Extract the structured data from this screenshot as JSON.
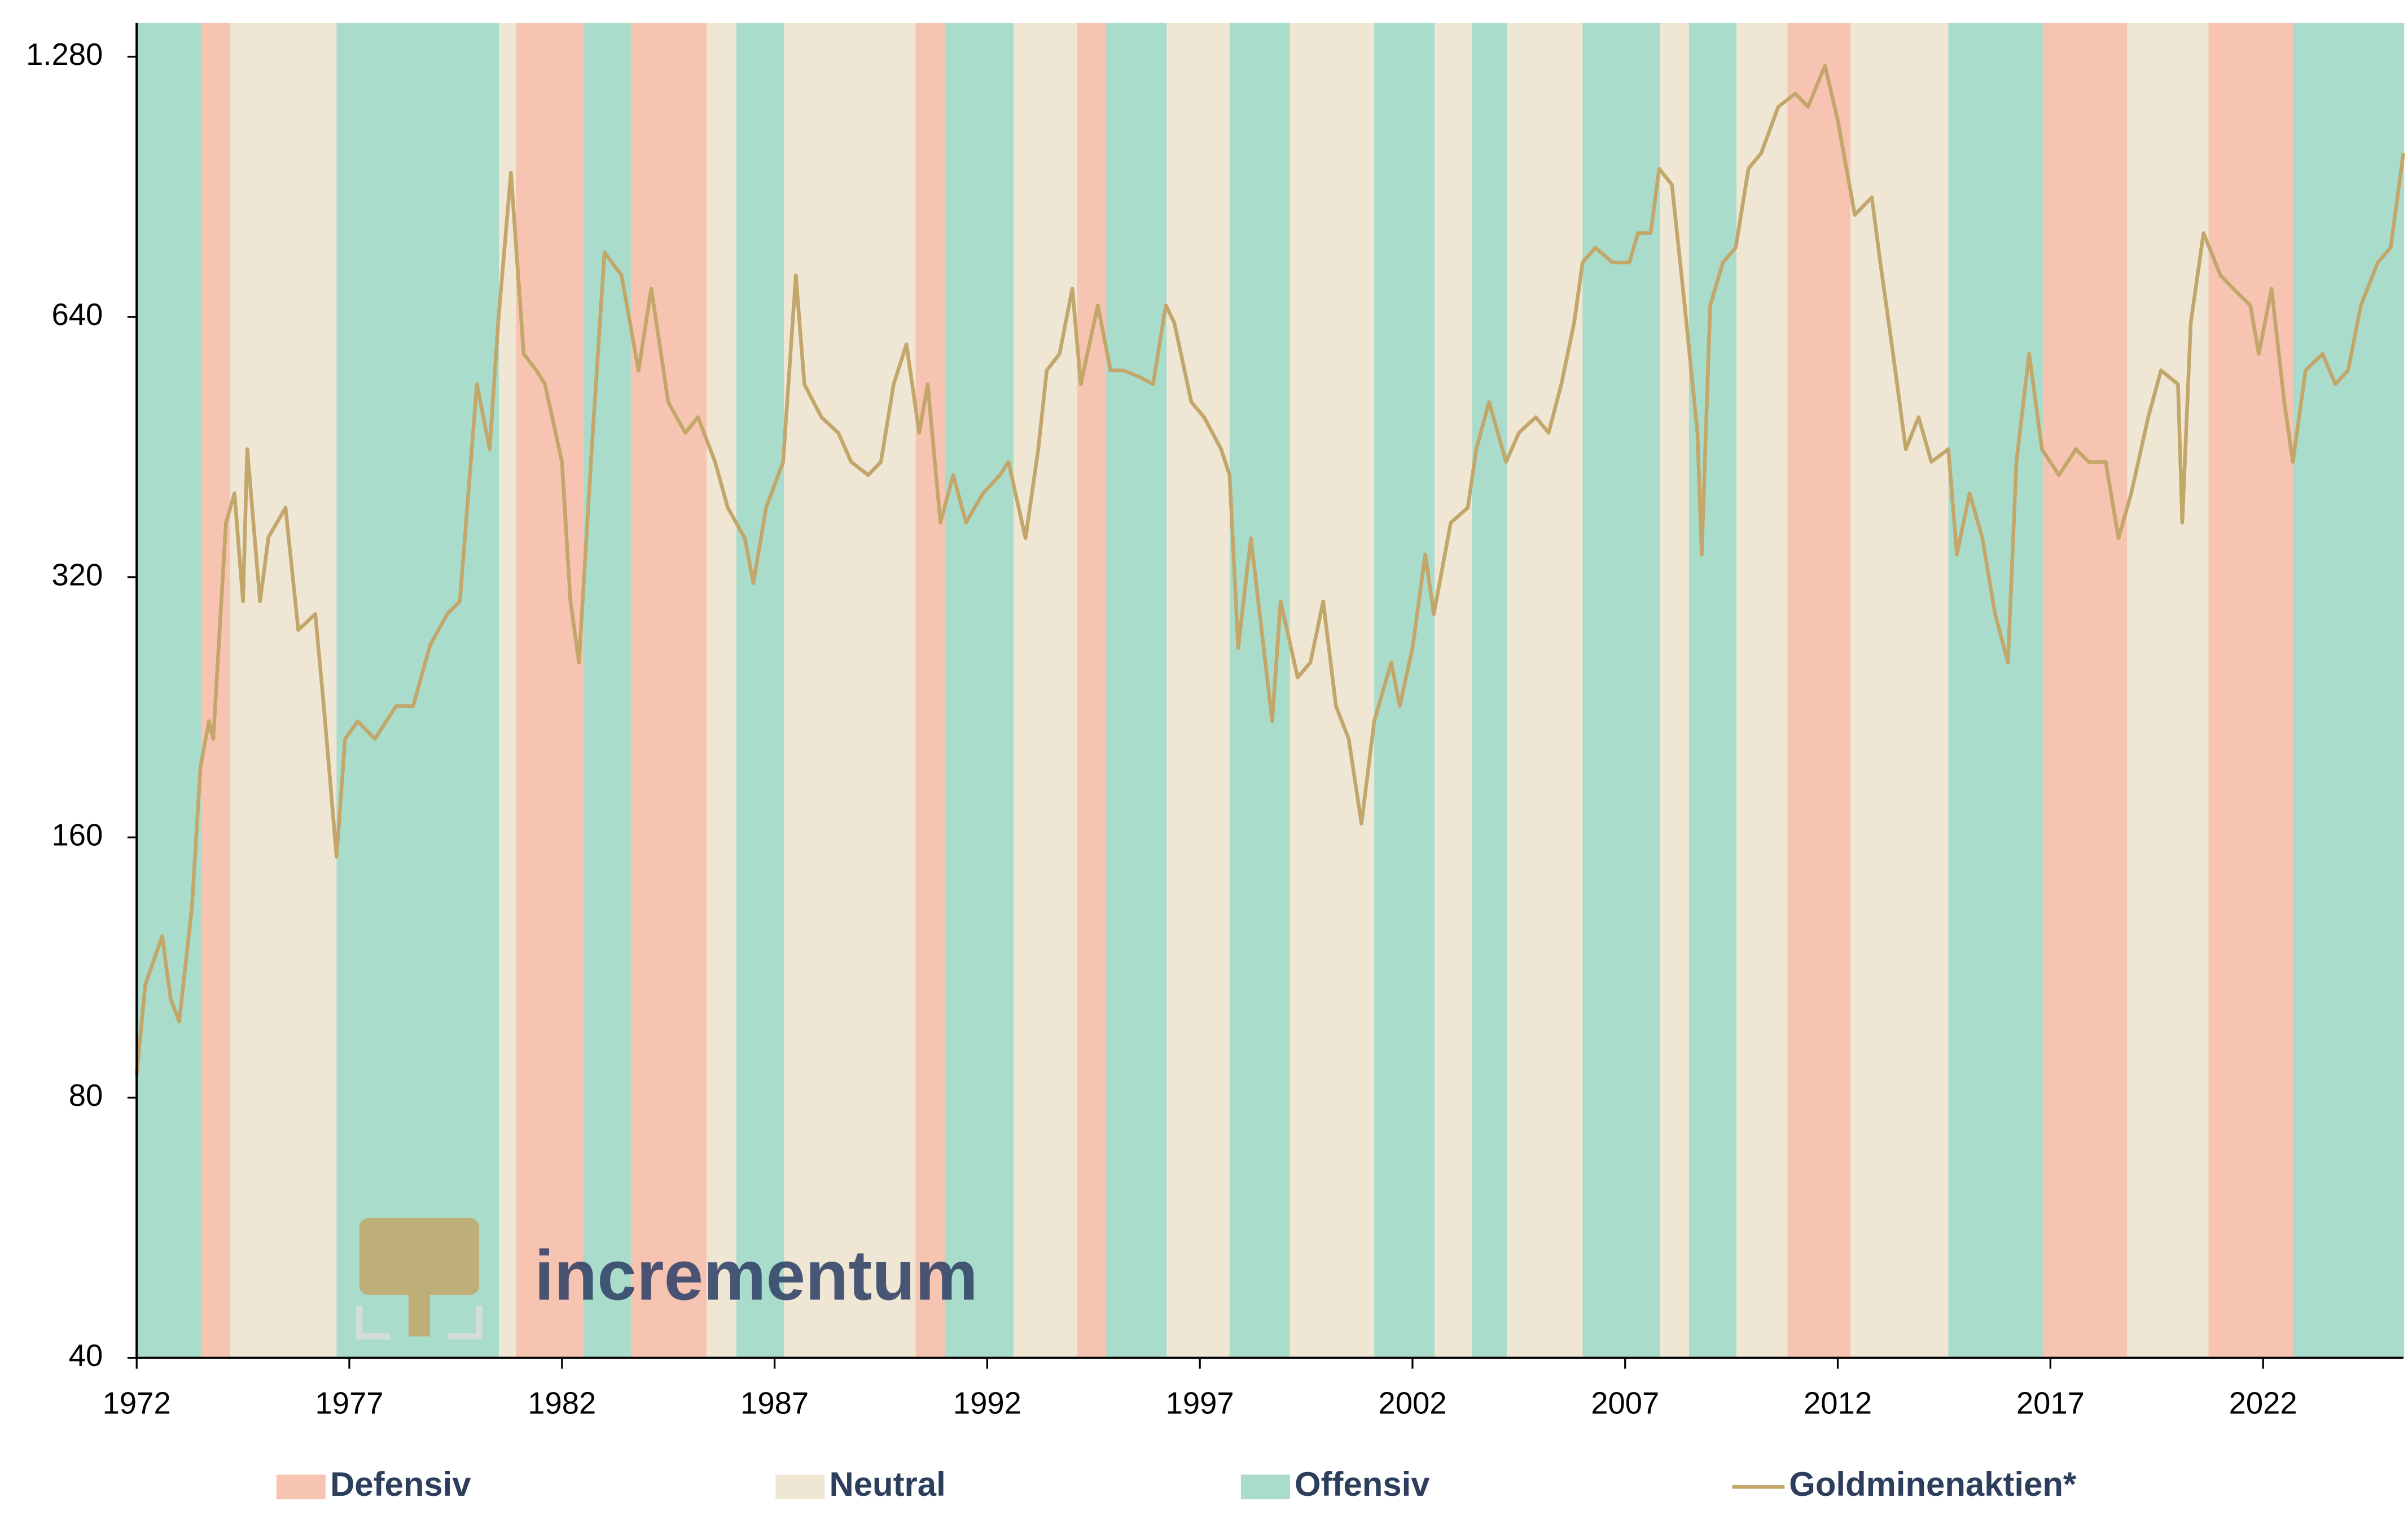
{
  "chart_data": {
    "type": "line",
    "log_scale": true,
    "xlim": [
      1972,
      2025.3
    ],
    "xticks": [
      1972,
      1977,
      1982,
      1987,
      1992,
      1997,
      2002,
      2007,
      2012,
      2017,
      2022
    ],
    "ylim": [
      40,
      1400
    ],
    "yticks": [
      40,
      80,
      160,
      320,
      640,
      {
        "value": 1280,
        "label": "1.280"
      }
    ],
    "watermark": "incrementum",
    "regimes": [
      {
        "name": "Defensiv",
        "color": "#f7c4b2",
        "intervals": [
          [
            1973.5,
            1974.2
          ],
          [
            1980.9,
            1982.5
          ],
          [
            1983.6,
            1985.4
          ],
          [
            1990.3,
            1991.0
          ],
          [
            1994.1,
            1994.8
          ],
          [
            2010.8,
            2012.3
          ],
          [
            2016.8,
            2018.8
          ],
          [
            2020.7,
            2022.7
          ]
        ]
      },
      {
        "name": "Neutral",
        "color": "#efe6d4",
        "intervals": [
          [
            1974.2,
            1976.7
          ],
          [
            1980.5,
            1980.9
          ],
          [
            1985.4,
            1986.1
          ],
          [
            1987.2,
            1990.3
          ],
          [
            1992.6,
            1994.1
          ],
          [
            1996.2,
            1997.7
          ],
          [
            1999.1,
            2001.1
          ],
          [
            2002.5,
            2003.4
          ],
          [
            2004.2,
            2006.0
          ],
          [
            2007.8,
            2008.5
          ],
          [
            2009.6,
            2010.8
          ],
          [
            2012.3,
            2014.6
          ],
          [
            2018.8,
            2020.7
          ]
        ]
      },
      {
        "name": "Offensiv",
        "color": "#aadccb",
        "intervals": [
          [
            1972.0,
            1973.5
          ],
          [
            1976.7,
            1980.5
          ],
          [
            1982.5,
            1983.6
          ],
          [
            1986.1,
            1987.2
          ],
          [
            1991.0,
            1992.6
          ],
          [
            1994.8,
            1996.2
          ],
          [
            1997.7,
            1999.1
          ],
          [
            2001.1,
            2002.5
          ],
          [
            2003.4,
            2004.2
          ],
          [
            2006.0,
            2007.8
          ],
          [
            2008.5,
            2009.6
          ],
          [
            2014.6,
            2016.8
          ],
          [
            2022.7,
            2025.3
          ]
        ]
      }
    ],
    "x": [
      1972.0,
      1972.2,
      1972.6,
      1972.8,
      1973.0,
      1973.3,
      1973.5,
      1973.7,
      1973.8,
      1974.1,
      1974.3,
      1974.5,
      1974.6,
      1974.9,
      1975.1,
      1975.5,
      1975.8,
      1976.2,
      1976.4,
      1976.7,
      1976.9,
      1977.2,
      1977.6,
      1978.1,
      1978.5,
      1978.9,
      1979.3,
      1979.6,
      1980.0,
      1980.3,
      1980.5,
      1980.8,
      1981.1,
      1981.4,
      1981.6,
      1982.0,
      1982.2,
      1982.4,
      1982.7,
      1983.0,
      1983.4,
      1983.8,
      1984.1,
      1984.5,
      1984.9,
      1985.2,
      1985.6,
      1985.9,
      1986.3,
      1986.5,
      1986.8,
      1987.2,
      1987.5,
      1987.7,
      1988.1,
      1988.5,
      1988.8,
      1989.2,
      1989.5,
      1989.8,
      1990.1,
      1990.4,
      1990.6,
      1990.9,
      1991.2,
      1991.5,
      1991.9,
      1992.3,
      1992.5,
      1992.9,
      1993.2,
      1993.4,
      1993.7,
      1994.0,
      1994.2,
      1994.6,
      1994.9,
      1995.2,
      1995.6,
      1995.9,
      1996.2,
      1996.4,
      1996.8,
      1997.1,
      1997.5,
      1997.7,
      1997.9,
      1998.2,
      1998.5,
      1998.7,
      1998.9,
      1999.3,
      1999.6,
      1999.9,
      2000.2,
      2000.5,
      2000.8,
      2001.1,
      2001.5,
      2001.7,
      2002.0,
      2002.3,
      2002.5,
      2002.9,
      2003.3,
      2003.5,
      2003.8,
      2004.2,
      2004.5,
      2004.9,
      2005.2,
      2005.5,
      2005.8,
      2006.0,
      2006.3,
      2006.7,
      2007.1,
      2007.3,
      2007.6,
      2007.8,
      2008.1,
      2008.4,
      2008.7,
      2008.8,
      2009.0,
      2009.3,
      2009.6,
      2009.9,
      2010.2,
      2010.6,
      2011.0,
      2011.3,
      2011.7,
      2012.0,
      2012.4,
      2012.8,
      2013.0,
      2013.3,
      2013.6,
      2013.9,
      2014.2,
      2014.6,
      2014.8,
      2015.1,
      2015.4,
      2015.7,
      2016.0,
      2016.2,
      2016.5,
      2016.8,
      2017.2,
      2017.6,
      2017.9,
      2018.3,
      2018.6,
      2018.9,
      2019.3,
      2019.6,
      2020.0,
      2020.1,
      2020.3,
      2020.6,
      2021.0,
      2021.3,
      2021.7,
      2021.9,
      2022.2,
      2022.5,
      2022.7,
      2023.0,
      2023.4,
      2023.7,
      2024.0,
      2024.3,
      2024.7,
      2025.0,
      2025.3
    ],
    "series": [
      {
        "name": "Goldminenaktien*",
        "color": "#c2a66a",
        "values": [
          85,
          108,
          123,
          104,
          98,
          133,
          193,
          218,
          208,
          370,
          400,
          300,
          450,
          300,
          356,
          385,
          278,
          290,
          227,
          152,
          208,
          218,
          208,
          227,
          227,
          267,
          290,
          300,
          535,
          450,
          630,
          940,
          580,
          555,
          535,
          435,
          300,
          255,
          450,
          760,
          715,
          555,
          690,
          510,
          470,
          490,
          435,
          385,
          355,
          315,
          385,
          435,
          715,
          535,
          490,
          470,
          435,
          420,
          435,
          535,
          595,
          470,
          535,
          370,
          420,
          370,
          400,
          420,
          435,
          355,
          450,
          555,
          580,
          690,
          535,
          660,
          555,
          555,
          545,
          535,
          660,
          630,
          510,
          490,
          450,
          420,
          265,
          355,
          265,
          218,
          300,
          245,
          255,
          300,
          227,
          208,
          166,
          218,
          255,
          227,
          265,
          340,
          290,
          370,
          385,
          450,
          510,
          435,
          470,
          490,
          470,
          535,
          630,
          740,
          770,
          740,
          740,
          800,
          800,
          950,
          910,
          660,
          470,
          340,
          660,
          740,
          770,
          950,
          990,
          1120,
          1160,
          1120,
          1250,
          1080,
          840,
          880,
          740,
          580,
          450,
          490,
          435,
          450,
          340,
          400,
          355,
          290,
          255,
          435,
          580,
          450,
          420,
          450,
          435,
          435,
          355,
          400,
          490,
          555,
          535,
          370,
          630,
          800,
          715,
          690,
          660,
          580,
          690,
          510,
          435,
          555,
          580,
          535,
          555,
          660,
          740,
          770,
          990
        ]
      }
    ]
  }
}
